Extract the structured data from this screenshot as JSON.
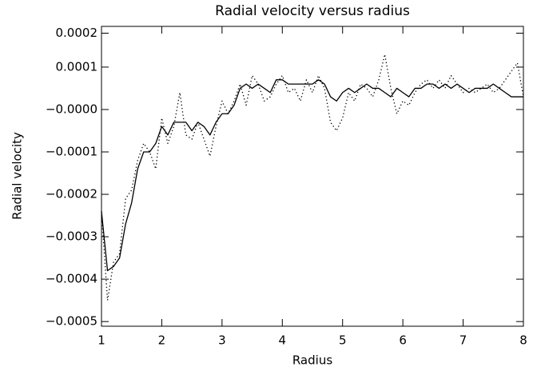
{
  "chart_data": {
    "type": "line",
    "title": "Radial velocity versus radius",
    "x_label": "Radius",
    "y_label": "Radial velocity",
    "x": [
      1.0,
      1.1,
      1.2,
      1.3,
      1.4,
      1.5,
      1.6,
      1.7,
      1.8,
      1.9,
      2.0,
      2.1,
      2.2,
      2.3,
      2.4,
      2.5,
      2.6,
      2.7,
      2.8,
      2.9,
      3.0,
      3.1,
      3.2,
      3.3,
      3.4,
      3.5,
      3.6,
      3.7,
      3.8,
      3.9,
      4.0,
      4.1,
      4.2,
      4.3,
      4.4,
      4.5,
      4.6,
      4.7,
      4.8,
      4.9,
      5.0,
      5.1,
      5.2,
      5.3,
      5.4,
      5.5,
      5.6,
      5.7,
      5.8,
      5.9,
      6.0,
      6.1,
      6.2,
      6.3,
      6.4,
      6.5,
      6.6,
      6.7,
      6.8,
      6.9,
      7.0,
      7.1,
      7.2,
      7.3,
      7.4,
      7.5,
      7.6,
      7.7,
      7.8,
      7.9,
      8.0
    ],
    "series": [
      {
        "color": "#000000",
        "style": "solid",
        "values": [
          -0.00024,
          -0.00038,
          -0.00037,
          -0.00035,
          -0.00027,
          -0.00022,
          -0.00014,
          -0.0001,
          -0.0001,
          -8e-05,
          -4e-05,
          -6e-05,
          -3e-05,
          -3e-05,
          -3e-05,
          -5e-05,
          -3e-05,
          -4e-05,
          -6e-05,
          -3e-05,
          -1e-05,
          -1e-05,
          1e-05,
          5e-05,
          6e-05,
          5e-05,
          6e-05,
          5e-05,
          4e-05,
          7e-05,
          7e-05,
          6e-05,
          6e-05,
          6e-05,
          6e-05,
          6e-05,
          7e-05,
          6e-05,
          3e-05,
          2e-05,
          4e-05,
          5e-05,
          4e-05,
          5e-05,
          6e-05,
          5e-05,
          5e-05,
          4e-05,
          3e-05,
          5e-05,
          4e-05,
          3e-05,
          5e-05,
          5e-05,
          6e-05,
          6e-05,
          5e-05,
          6e-05,
          5e-05,
          6e-05,
          5e-05,
          4e-05,
          5e-05,
          5e-05,
          5e-05,
          6e-05,
          5e-05,
          4e-05,
          3e-05,
          3e-05,
          3e-05
        ]
      },
      {
        "color": "#000000",
        "style": "dotted",
        "values": [
          -0.00024,
          -0.00045,
          -0.00036,
          -0.00034,
          -0.00021,
          -0.00019,
          -0.00012,
          -8e-05,
          -0.0001,
          -0.00014,
          -2e-05,
          -8e-05,
          -4e-05,
          4e-05,
          -6e-05,
          -7e-05,
          -3e-05,
          -7e-05,
          -0.00011,
          -4e-05,
          2e-05,
          -1e-05,
          2e-05,
          6e-05,
          1e-05,
          8e-05,
          6e-05,
          2e-05,
          3e-05,
          6e-05,
          8e-05,
          4e-05,
          5e-05,
          2e-05,
          7e-05,
          4e-05,
          8e-05,
          5e-05,
          -3e-05,
          -5e-05,
          -2e-05,
          4e-05,
          2e-05,
          6e-05,
          5e-05,
          3e-05,
          7e-05,
          0.00013,
          5e-05,
          -1e-05,
          2e-05,
          1e-05,
          4e-05,
          6e-05,
          7e-05,
          5e-05,
          7e-05,
          5e-05,
          8e-05,
          6e-05,
          4e-05,
          5e-05,
          4e-05,
          5e-05,
          6e-05,
          4e-05,
          5e-05,
          7e-05,
          9e-05,
          0.00011,
          3e-05
        ]
      }
    ],
    "xlim": [
      1,
      8
    ],
    "xticks": [
      1,
      2,
      3,
      4,
      5,
      6,
      7,
      8
    ],
    "ylim": [
      -0.000511,
      0.000196
    ],
    "yticks": [
      {
        "value": 0.00018,
        "label": "0.0002"
      },
      0.0001,
      {
        "value": 0,
        "label": "−0.0000"
      },
      {
        "value": -0.0001,
        "label": "−0.0001"
      },
      {
        "value": -0.0002,
        "label": "−0.0002"
      },
      {
        "value": -0.0003,
        "label": "−0.0003"
      },
      {
        "value": -0.0004,
        "label": "−0.0004"
      },
      {
        "value": -0.0005,
        "label": "−0.0005"
      }
    ],
    "grid": false
  }
}
